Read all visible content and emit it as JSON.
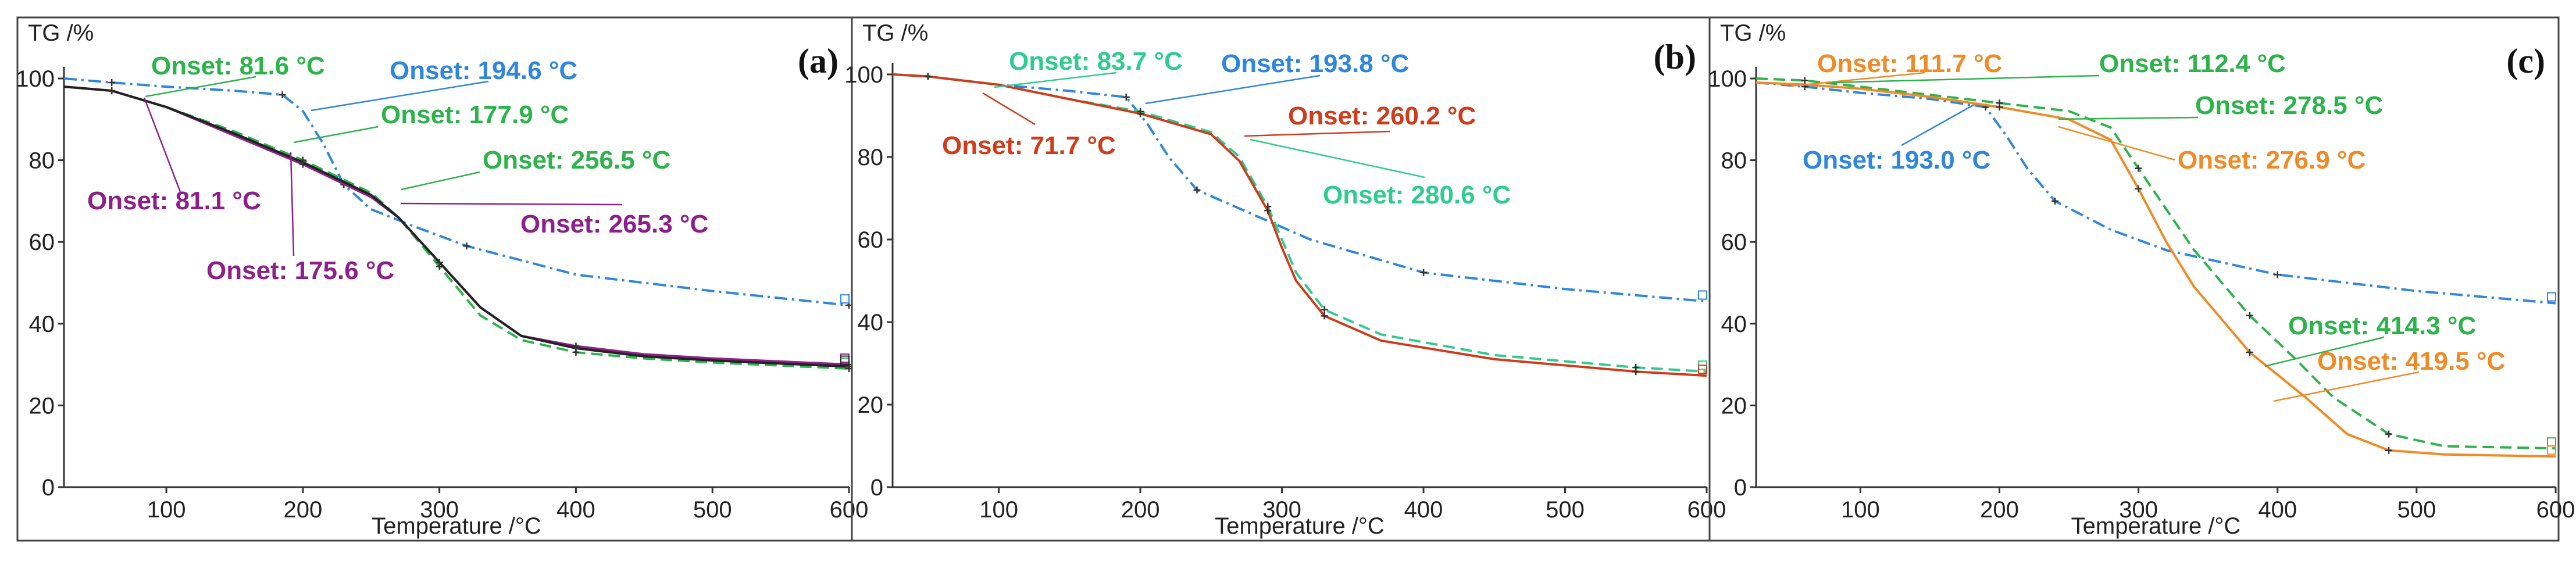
{
  "chart_data": [
    {
      "panel_label": "(a)",
      "type": "line",
      "ylabel": "TG /%",
      "xlabel": "Temperature /°C",
      "xlim": [
        25,
        600
      ],
      "ylim": [
        0,
        100
      ],
      "xticks": [
        100,
        200,
        300,
        400,
        500,
        600
      ],
      "yticks": [
        0,
        20,
        40,
        60,
        80,
        100
      ],
      "series": [
        {
          "name": "blue",
          "color": "#2e86de",
          "dash": "dashdot",
          "x": [
            25,
            60,
            100,
            150,
            185,
            200,
            215,
            230,
            250,
            280,
            320,
            400,
            500,
            600
          ],
          "y": [
            100,
            99,
            98,
            97,
            96,
            92,
            84,
            74,
            68,
            64,
            59,
            52,
            48,
            44.5
          ]
        },
        {
          "name": "green",
          "color": "#2cb34a",
          "dash": "dash",
          "x": [
            25,
            60,
            100,
            150,
            200,
            250,
            270,
            300,
            330,
            360,
            400,
            450,
            500,
            600
          ],
          "y": [
            98,
            97,
            93,
            87,
            80,
            72,
            66,
            54,
            42,
            36,
            33,
            31.5,
            30.5,
            29
          ]
        },
        {
          "name": "purple",
          "color": "#8e1f8a",
          "dash": "solid",
          "x": [
            25,
            60,
            100,
            150,
            200,
            250,
            270,
            300,
            330,
            360,
            400,
            450,
            500,
            600
          ],
          "y": [
            98,
            97,
            93,
            86,
            79,
            71,
            66,
            55,
            44,
            37,
            34.5,
            32.5,
            31.5,
            30
          ]
        },
        {
          "name": "black",
          "color": "#222222",
          "dash": "solid",
          "x": [
            25,
            60,
            100,
            150,
            200,
            250,
            270,
            300,
            330,
            360,
            400,
            450,
            500,
            600
          ],
          "y": [
            98,
            97,
            93,
            86.5,
            79.5,
            71.5,
            66,
            55,
            44,
            37,
            34,
            32,
            31,
            29.5
          ]
        }
      ],
      "annotations": [
        {
          "text": "Onset: 81.6 °C",
          "color": "#2cb34a",
          "x": 81.6
        },
        {
          "text": "Onset: 194.6 °C",
          "color": "#2e86de",
          "x": 194.6
        },
        {
          "text": "Onset: 177.9 °C",
          "color": "#2cb34a",
          "x": 177.9
        },
        {
          "text": "Onset: 256.5 °C",
          "color": "#2cb34a",
          "x": 256.5
        },
        {
          "text": "Onset: 81.1 °C",
          "color": "#8e1f8a",
          "x": 81.1
        },
        {
          "text": "Onset: 265.3 °C",
          "color": "#8e1f8a",
          "x": 265.3
        },
        {
          "text": "Onset: 175.6 °C",
          "color": "#8e1f8a",
          "x": 175.6
        }
      ]
    },
    {
      "panel_label": "(b)",
      "type": "line",
      "ylabel": "TG /%",
      "xlabel": "Temperature /°C",
      "xlim": [
        25,
        600
      ],
      "ylim": [
        0,
        100
      ],
      "xticks": [
        100,
        200,
        300,
        400,
        500,
        600
      ],
      "yticks": [
        0,
        20,
        40,
        60,
        80,
        100
      ],
      "series": [
        {
          "name": "blue",
          "color": "#2e86de",
          "dash": "dashdot",
          "x": [
            25,
            50,
            100,
            150,
            190,
            205,
            220,
            240,
            280,
            320,
            400,
            500,
            600
          ],
          "y": [
            100,
            99.5,
            97.5,
            96,
            94.5,
            88,
            80,
            72,
            66,
            60,
            52,
            48,
            45
          ]
        },
        {
          "name": "green",
          "color": "#2ecc8e",
          "dash": "dash",
          "x": [
            25,
            50,
            100,
            150,
            200,
            250,
            270,
            290,
            300,
            310,
            330,
            370,
            450,
            550,
            600
          ],
          "y": [
            100,
            99.5,
            97.5,
            94,
            91,
            86,
            80,
            68,
            60,
            52,
            43,
            37,
            32,
            29,
            28
          ]
        },
        {
          "name": "red",
          "color": "#cf3b1b",
          "dash": "solid",
          "x": [
            25,
            50,
            100,
            150,
            200,
            250,
            270,
            290,
            300,
            310,
            330,
            370,
            450,
            550,
            600
          ],
          "y": [
            100,
            99.5,
            97.5,
            94,
            90.5,
            85.5,
            79,
            67,
            58,
            50,
            41.5,
            35.5,
            31,
            28,
            27
          ]
        }
      ],
      "annotations": [
        {
          "text": "Onset: 83.7 °C",
          "color": "#2ecc8e",
          "x": 83.7
        },
        {
          "text": "Onset: 193.8 °C",
          "color": "#2e86de",
          "x": 193.8
        },
        {
          "text": "Onset: 260.2 °C",
          "color": "#cf3b1b",
          "x": 260.2
        },
        {
          "text": "Onset: 71.7 °C",
          "color": "#cf3b1b",
          "x": 71.7
        },
        {
          "text": "Onset: 280.6 °C",
          "color": "#2ecc8e",
          "x": 280.6
        }
      ]
    },
    {
      "panel_label": "(c)",
      "type": "line",
      "ylabel": "TG /%",
      "xlabel": "Temperature /°C",
      "xlim": [
        25,
        600
      ],
      "ylim": [
        0,
        100
      ],
      "xticks": [
        100,
        200,
        300,
        400,
        500,
        600
      ],
      "yticks": [
        0,
        20,
        40,
        60,
        80,
        100
      ],
      "series": [
        {
          "name": "blue",
          "color": "#2e86de",
          "dash": "dashdot",
          "x": [
            25,
            60,
            100,
            150,
            190,
            205,
            220,
            240,
            280,
            320,
            400,
            500,
            600
          ],
          "y": [
            99,
            98,
            96.5,
            95,
            93,
            86,
            78,
            70,
            63,
            58,
            52,
            48,
            45
          ]
        },
        {
          "name": "green",
          "color": "#2cb34a",
          "dash": "dash",
          "x": [
            25,
            60,
            100,
            150,
            200,
            250,
            280,
            300,
            320,
            340,
            380,
            414,
            440,
            480,
            520,
            600
          ],
          "y": [
            100,
            99.5,
            98,
            96,
            94,
            92,
            88,
            78,
            68,
            58,
            42,
            31,
            22,
            13,
            10,
            9.5
          ]
        },
        {
          "name": "orange",
          "color": "#f08a24",
          "dash": "solid",
          "x": [
            25,
            60,
            100,
            150,
            200,
            250,
            280,
            300,
            320,
            340,
            380,
            420,
            450,
            480,
            520,
            600
          ],
          "y": [
            99,
            98.5,
            97.5,
            95.5,
            93,
            90,
            85,
            73,
            60,
            49,
            33,
            22,
            13,
            9,
            8,
            7.5
          ]
        }
      ],
      "annotations": [
        {
          "text": "Onset: 111.7 °C",
          "color": "#f08a24",
          "x": 111.7
        },
        {
          "text": "Onset: 112.4 °C",
          "color": "#2cb34a",
          "x": 112.4
        },
        {
          "text": "Onset: 278.5 °C",
          "color": "#2cb34a",
          "x": 278.5
        },
        {
          "text": "Onset: 193.0 °C",
          "color": "#2e86de",
          "x": 193.0
        },
        {
          "text": "Onset: 276.9 °C",
          "color": "#f08a24",
          "x": 276.9
        },
        {
          "text": "Onset: 414.3 °C",
          "color": "#2cb34a",
          "x": 414.3
        },
        {
          "text": "Onset: 419.5 °C",
          "color": "#f08a24",
          "x": 419.5
        }
      ]
    }
  ]
}
